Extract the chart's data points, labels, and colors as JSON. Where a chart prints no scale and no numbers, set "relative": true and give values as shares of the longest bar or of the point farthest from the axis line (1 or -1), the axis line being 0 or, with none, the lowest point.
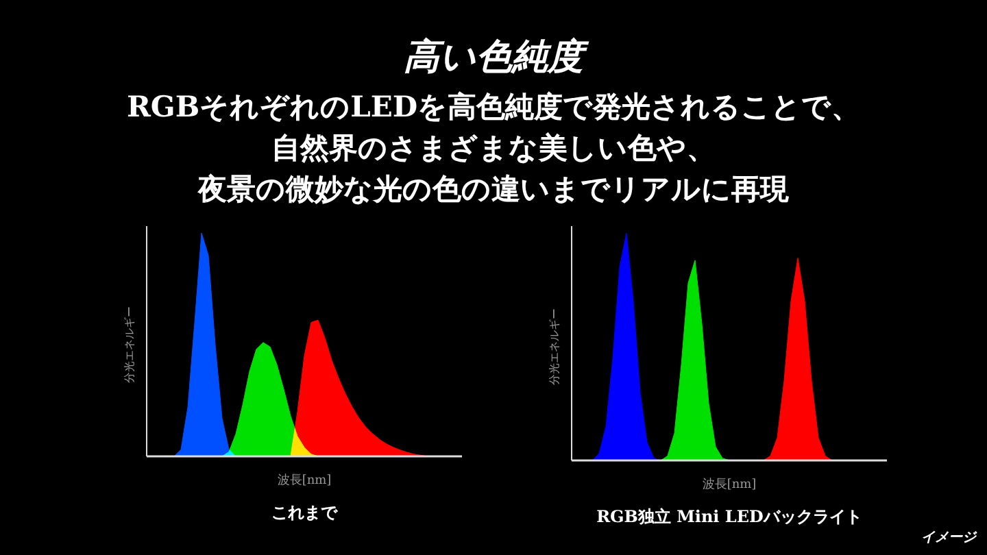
{
  "chart_data": [
    {
      "type": "other",
      "title": "高い色純度",
      "subtitle": [
        "RGBそれぞれのLEDを高色純度で発光されることで、",
        "自然界のさまざまな美しい色や、",
        "夜景の微妙な光の色の違いまでリアルに再現"
      ],
      "annotations": [
        "イメージ"
      ]
    },
    {
      "type": "area",
      "relative": true,
      "title": "これまで",
      "xlabel": "波長[nm]",
      "ylabel": "分光エネルギー",
      "categories": [
        null,
        null,
        null,
        null,
        null,
        null,
        null,
        null,
        null,
        null,
        null,
        null,
        null,
        null,
        null,
        null,
        null,
        null,
        null,
        null,
        null,
        null,
        null,
        null,
        null,
        null,
        null,
        null,
        null,
        null,
        null,
        null,
        null,
        null,
        null,
        null,
        null,
        null,
        null,
        null,
        null,
        null,
        null,
        null,
        null,
        null,
        null
      ],
      "series": [
        {
          "color": "#0050ff",
          "values": [
            0,
            0,
            0,
            0,
            0,
            0.03,
            0.22,
            0.6,
            1.0,
            0.9,
            0.5,
            0.17,
            0.03,
            0,
            0,
            0,
            0,
            0,
            0,
            0,
            0,
            0,
            0,
            0,
            0,
            0,
            0,
            0,
            0,
            0,
            0,
            0,
            0,
            0,
            0,
            0,
            0,
            0,
            0,
            0,
            0,
            0,
            0,
            0,
            0,
            0,
            0
          ]
        },
        {
          "color": "#ff0000",
          "values": [
            0,
            0,
            0,
            0,
            0,
            0,
            0,
            0,
            0,
            0,
            0,
            0,
            0,
            0,
            0,
            0,
            0,
            0,
            0,
            0,
            0,
            0,
            0.2,
            0.45,
            0.6,
            0.61,
            0.53,
            0.43,
            0.35,
            0.28,
            0.22,
            0.17,
            0.13,
            0.1,
            0.075,
            0.055,
            0.04,
            0.028,
            0.018,
            0.01,
            0.005,
            0,
            0,
            0,
            0,
            0,
            0
          ]
        },
        {
          "color": "#00e000",
          "values": [
            0,
            0,
            0,
            0,
            0,
            0,
            0,
            0,
            0,
            0,
            0,
            0,
            0.02,
            0.1,
            0.23,
            0.38,
            0.48,
            0.51,
            0.49,
            0.41,
            0.3,
            0.18,
            0.09,
            0.04,
            0.01,
            0,
            0,
            0,
            0,
            0,
            0,
            0,
            0,
            0,
            0,
            0,
            0,
            0,
            0,
            0,
            0,
            0,
            0,
            0,
            0,
            0,
            0
          ]
        }
      ]
    },
    {
      "type": "area",
      "relative": true,
      "title": "RGB独立 Mini LEDバックライト",
      "xlabel": "波長[nm]",
      "ylabel": "分光エネルギー",
      "categories": [
        null,
        null,
        null,
        null,
        null,
        null,
        null,
        null,
        null,
        null,
        null,
        null,
        null,
        null,
        null,
        null,
        null,
        null,
        null,
        null,
        null,
        null,
        null,
        null,
        null,
        null,
        null,
        null,
        null,
        null,
        null,
        null,
        null,
        null,
        null,
        null,
        null,
        null,
        null,
        null,
        null,
        null,
        null,
        null,
        null,
        null,
        null
      ],
      "series": [
        {
          "color": "#0000ff",
          "values": [
            0,
            0,
            0,
            0,
            0.03,
            0.15,
            0.45,
            0.85,
            1.0,
            0.7,
            0.3,
            0.08,
            0.01,
            0,
            0,
            0,
            0,
            0,
            0,
            0,
            0,
            0,
            0,
            0,
            0,
            0,
            0,
            0,
            0,
            0,
            0,
            0,
            0,
            0,
            0,
            0,
            0,
            0,
            0,
            0,
            0,
            0,
            0,
            0,
            0,
            0,
            0
          ]
        },
        {
          "color": "#00e000",
          "values": [
            0,
            0,
            0,
            0,
            0,
            0,
            0,
            0,
            0,
            0,
            0,
            0,
            0,
            0,
            0.02,
            0.12,
            0.42,
            0.78,
            0.88,
            0.6,
            0.25,
            0.06,
            0.01,
            0,
            0,
            0,
            0,
            0,
            0,
            0,
            0,
            0,
            0,
            0,
            0,
            0,
            0,
            0,
            0,
            0,
            0,
            0,
            0,
            0,
            0,
            0,
            0
          ]
        },
        {
          "color": "#ff0000",
          "values": [
            0,
            0,
            0,
            0,
            0,
            0,
            0,
            0,
            0,
            0,
            0,
            0,
            0,
            0,
            0,
            0,
            0,
            0,
            0,
            0,
            0,
            0,
            0,
            0,
            0,
            0,
            0,
            0,
            0,
            0.02,
            0.1,
            0.35,
            0.7,
            0.89,
            0.7,
            0.35,
            0.1,
            0.02,
            0,
            0,
            0,
            0,
            0,
            0,
            0,
            0,
            0
          ]
        }
      ]
    }
  ]
}
